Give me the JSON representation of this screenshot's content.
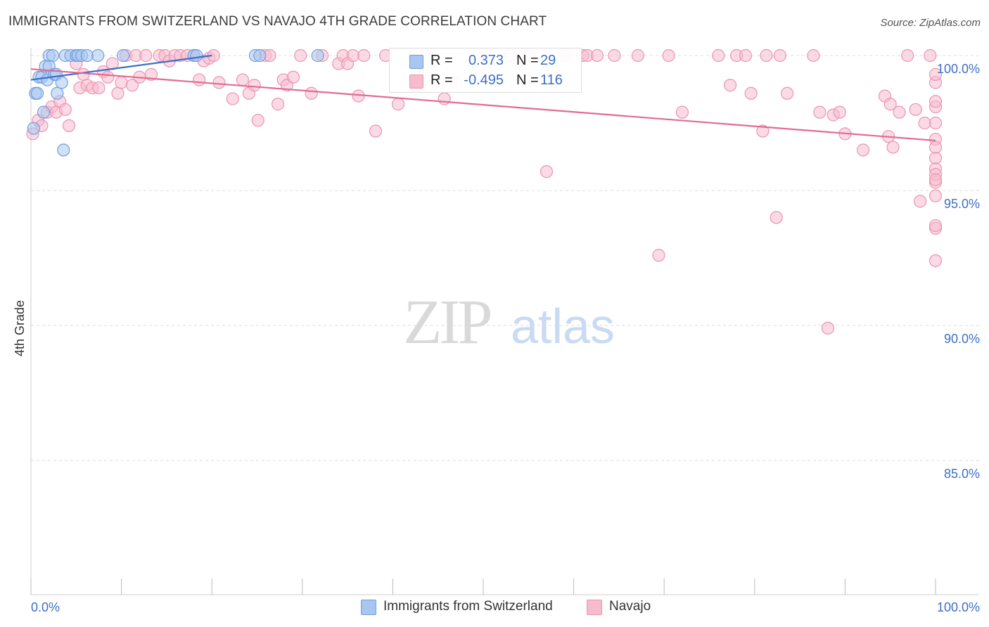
{
  "title": "IMMIGRANTS FROM SWITZERLAND VS NAVAJO 4TH GRADE CORRELATION CHART",
  "source": "Source: ZipAtlas.com",
  "watermark": {
    "zip": "ZIP",
    "atlas": "atlas"
  },
  "colors": {
    "blue_fill": "#a9c6ee",
    "blue_stroke": "#6f9fe0",
    "blue_line": "#3a6fc9",
    "pink_fill": "#f6bccd",
    "pink_stroke": "#ec94b0",
    "pink_line": "#e36a93",
    "accent_text": "#3d6fc4",
    "grid": "#dddddd"
  },
  "legend": {
    "rows": [
      {
        "r_label": "R =",
        "r_value": "0.373",
        "n_label": "N =",
        "n_value": "29",
        "color": "#a9c6ee",
        "stroke": "#6f9fe0"
      },
      {
        "r_label": "R =",
        "r_value": "-0.495",
        "n_label": "N =",
        "n_value": "116",
        "color": "#f6bccd",
        "stroke": "#ec94b0"
      }
    ]
  },
  "bottom_legend": [
    {
      "label": "Immigrants from Switzerland",
      "color": "#a9c6ee",
      "stroke": "#6f9fe0"
    },
    {
      "label": "Navajo",
      "color": "#f6bccd",
      "stroke": "#ec94b0"
    }
  ],
  "chart_data": {
    "type": "scatter",
    "title": "IMMIGRANTS FROM SWITZERLAND VS NAVAJO 4TH GRADE CORRELATION CHART",
    "xlabel": "",
    "ylabel": "4th Grade",
    "xlim": [
      0,
      100
    ],
    "ylim": [
      80.5,
      100.7
    ],
    "x_tick_labels": [
      "0.0%",
      "100.0%"
    ],
    "y_ticks": [
      100,
      95,
      90,
      85
    ],
    "y_tick_labels": [
      "100.0%",
      "95.0%",
      "90.0%",
      "85.0%"
    ],
    "series": [
      {
        "name": "Immigrants from Switzerland",
        "R": 0.373,
        "N": 29,
        "trend": {
          "x": [
            0,
            20
          ],
          "y": [
            99.1,
            100.0
          ]
        },
        "points": [
          [
            0.3,
            97.3
          ],
          [
            0.5,
            98.6
          ],
          [
            0.7,
            98.6
          ],
          [
            0.9,
            99.2
          ],
          [
            1.2,
            99.2
          ],
          [
            1.4,
            97.9
          ],
          [
            1.6,
            99.6
          ],
          [
            1.8,
            99.1
          ],
          [
            2.0,
            100.0
          ],
          [
            2.0,
            99.6
          ],
          [
            2.4,
            100.0
          ],
          [
            2.6,
            99.3
          ],
          [
            2.8,
            99.3
          ],
          [
            2.9,
            98.6
          ],
          [
            3.4,
            99.0
          ],
          [
            3.6,
            96.5
          ],
          [
            3.8,
            100.0
          ],
          [
            4.4,
            100.0
          ],
          [
            5.0,
            100.0
          ],
          [
            5.2,
            100.0
          ],
          [
            5.6,
            100.0
          ],
          [
            6.2,
            100.0
          ],
          [
            7.4,
            100.0
          ],
          [
            10.2,
            100.0
          ],
          [
            18.0,
            100.0
          ],
          [
            18.3,
            100.0
          ],
          [
            24.8,
            100.0
          ],
          [
            25.3,
            100.0
          ],
          [
            31.7,
            100.0
          ]
        ]
      },
      {
        "name": "Navajo",
        "R": -0.495,
        "N": 116,
        "trend": {
          "x": [
            0,
            100
          ],
          "y": [
            99.5,
            96.85
          ]
        },
        "points": [
          [
            0.2,
            97.1
          ],
          [
            0.8,
            97.6
          ],
          [
            1.2,
            97.4
          ],
          [
            1.8,
            97.9
          ],
          [
            2.3,
            98.1
          ],
          [
            2.8,
            97.9
          ],
          [
            3.2,
            98.3
          ],
          [
            3.8,
            98.0
          ],
          [
            4.2,
            97.4
          ],
          [
            5.0,
            99.7
          ],
          [
            5.4,
            98.8
          ],
          [
            5.8,
            99.3
          ],
          [
            6.2,
            98.9
          ],
          [
            6.8,
            98.8
          ],
          [
            7.5,
            98.8
          ],
          [
            8.0,
            99.4
          ],
          [
            8.5,
            99.2
          ],
          [
            9.0,
            99.7
          ],
          [
            9.6,
            98.6
          ],
          [
            10.0,
            99.0
          ],
          [
            10.5,
            100.0
          ],
          [
            11.2,
            98.9
          ],
          [
            11.6,
            100.0
          ],
          [
            12.0,
            99.2
          ],
          [
            12.7,
            100.0
          ],
          [
            13.3,
            99.3
          ],
          [
            14.2,
            100.0
          ],
          [
            14.8,
            100.0
          ],
          [
            15.3,
            99.8
          ],
          [
            15.9,
            100.0
          ],
          [
            16.5,
            100.0
          ],
          [
            17.3,
            100.0
          ],
          [
            18.0,
            100.0
          ],
          [
            18.6,
            99.1
          ],
          [
            19.1,
            99.8
          ],
          [
            19.7,
            99.9
          ],
          [
            20.2,
            100.0
          ],
          [
            20.8,
            99.0
          ],
          [
            22.3,
            98.4
          ],
          [
            23.4,
            99.1
          ],
          [
            24.1,
            98.6
          ],
          [
            24.7,
            98.9
          ],
          [
            25.1,
            97.6
          ],
          [
            25.9,
            100.0
          ],
          [
            26.4,
            100.0
          ],
          [
            27.3,
            98.2
          ],
          [
            27.9,
            99.1
          ],
          [
            28.3,
            98.9
          ],
          [
            29.0,
            99.2
          ],
          [
            29.8,
            100.0
          ],
          [
            31.0,
            98.6
          ],
          [
            32.2,
            100.0
          ],
          [
            34.0,
            99.7
          ],
          [
            34.5,
            100.0
          ],
          [
            35.0,
            99.7
          ],
          [
            35.6,
            100.0
          ],
          [
            36.2,
            98.5
          ],
          [
            36.8,
            100.0
          ],
          [
            38.1,
            97.2
          ],
          [
            39.2,
            100.0
          ],
          [
            40.6,
            98.2
          ],
          [
            42.4,
            100.0
          ],
          [
            43.8,
            100.0
          ],
          [
            45.7,
            98.4
          ],
          [
            47.0,
            99.0
          ],
          [
            50.2,
            100.0
          ],
          [
            53.0,
            100.0
          ],
          [
            55.1,
            100.0
          ],
          [
            57.0,
            95.7
          ],
          [
            59.0,
            100.0
          ],
          [
            61.0,
            100.0
          ],
          [
            61.5,
            100.0
          ],
          [
            62.6,
            100.0
          ],
          [
            64.5,
            100.0
          ],
          [
            67.1,
            100.0
          ],
          [
            69.4,
            92.6
          ],
          [
            70.5,
            100.0
          ],
          [
            72.0,
            97.9
          ],
          [
            76.0,
            100.0
          ],
          [
            77.3,
            98.9
          ],
          [
            78.0,
            100.0
          ],
          [
            79.0,
            100.0
          ],
          [
            79.6,
            98.6
          ],
          [
            80.9,
            97.2
          ],
          [
            81.3,
            100.0
          ],
          [
            82.4,
            94.0
          ],
          [
            82.8,
            100.0
          ],
          [
            83.6,
            98.6
          ],
          [
            86.5,
            100.0
          ],
          [
            87.2,
            97.9
          ],
          [
            88.1,
            89.9
          ],
          [
            88.7,
            97.8
          ],
          [
            89.4,
            97.9
          ],
          [
            90.0,
            97.1
          ],
          [
            92.0,
            96.5
          ],
          [
            94.4,
            98.5
          ],
          [
            94.8,
            97.0
          ],
          [
            95.0,
            98.2
          ],
          [
            95.3,
            96.6
          ],
          [
            96.0,
            97.9
          ],
          [
            96.9,
            100.0
          ],
          [
            97.8,
            98.0
          ],
          [
            98.3,
            94.6
          ],
          [
            98.8,
            97.5
          ],
          [
            99.4,
            100.0
          ],
          [
            100.0,
            99.0
          ],
          [
            100.0,
            96.9
          ],
          [
            100.0,
            96.2
          ],
          [
            100.0,
            95.3
          ],
          [
            100.0,
            93.6
          ],
          [
            100.0,
            92.4
          ],
          [
            100.0,
            94.8
          ],
          [
            100.0,
            93.7
          ],
          [
            100.0,
            95.8
          ],
          [
            100.0,
            96.6
          ],
          [
            100.0,
            97.5
          ],
          [
            100.0,
            98.1
          ],
          [
            100.0,
            99.3
          ],
          [
            100.0,
            98.3
          ],
          [
            100.0,
            95.6
          ],
          [
            100.0,
            95.4
          ]
        ]
      }
    ]
  }
}
